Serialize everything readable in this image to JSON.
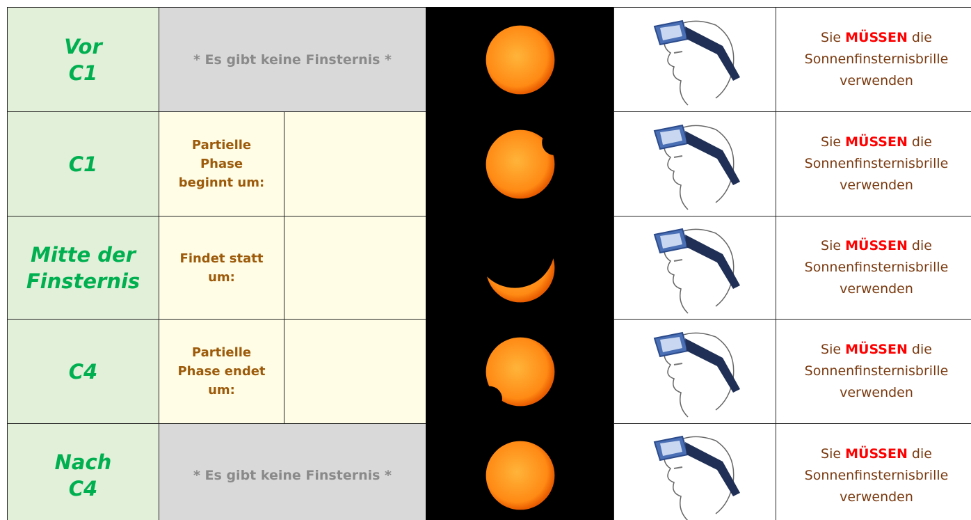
{
  "rows": [
    {
      "label": [
        "Vor",
        "C1"
      ],
      "phase": {
        "merged": "* Es gibt keine Finsternis *"
      },
      "note": {
        "line1": [
          "Sie",
          "MÜSSEN",
          "die"
        ],
        "line2": "Sonnenfinsternisbrille",
        "line3": "verwenden"
      }
    },
    {
      "label": [
        "C1"
      ],
      "phase": {
        "lines": [
          "Partielle",
          "Phase",
          "beginnt um:"
        ]
      },
      "note": {
        "line1": [
          "Sie",
          "MÜSSEN",
          "die"
        ],
        "line2": "Sonnenfinsternisbrille",
        "line3": "verwenden"
      }
    },
    {
      "label": [
        "Mitte der",
        "Finsternis"
      ],
      "phase": {
        "lines": [
          "Findet statt",
          "um:"
        ]
      },
      "note": {
        "line1": [
          "Sie",
          "MÜSSEN",
          "die"
        ],
        "line2": "Sonnenfinsternisbrille",
        "line3": "verwenden"
      }
    },
    {
      "label": [
        "C4"
      ],
      "phase": {
        "lines": [
          "Partielle",
          "Phase endet",
          "um:"
        ]
      },
      "note": {
        "line1": [
          "Sie",
          "MÜSSEN",
          "die"
        ],
        "line2": "Sonnenfinsternisbrille",
        "line3": "verwenden"
      }
    },
    {
      "label": [
        "Nach",
        "C4"
      ],
      "phase": {
        "merged": "* Es gibt keine Finsternis *"
      },
      "note": {
        "line1": [
          "Sie",
          "MÜSSEN",
          "die"
        ],
        "line2": "Sonnenfinsternisbrille",
        "line3": "verwenden"
      }
    }
  ]
}
